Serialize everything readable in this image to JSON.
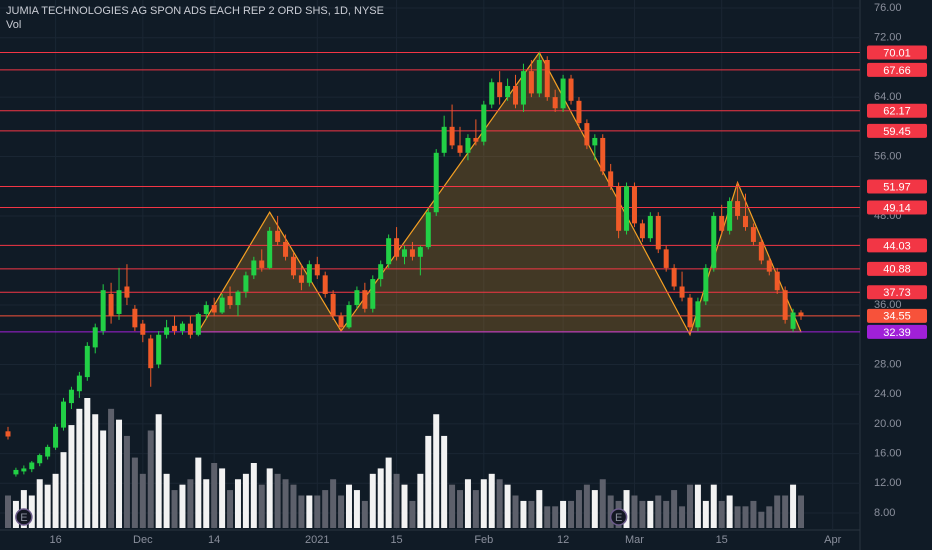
{
  "chart_data": {
    "type": "candlestick",
    "title": "JUMIA TECHNOLOGIES AG SPON ADS EACH REP 2 ORD SHS, 1D, NYSE",
    "volume_label": "Vol",
    "categories": [
      null,
      null,
      null,
      null,
      null,
      null,
      "16",
      null,
      null,
      null,
      null,
      null,
      null,
      null,
      null,
      null,
      null,
      "Dec",
      null,
      null,
      null,
      null,
      null,
      null,
      null,
      null,
      "14",
      null,
      null,
      null,
      null,
      null,
      null,
      null,
      null,
      null,
      null,
      null,
      null,
      "2021",
      null,
      null,
      null,
      null,
      null,
      null,
      null,
      null,
      null,
      "15",
      null,
      null,
      null,
      null,
      null,
      null,
      null,
      null,
      null,
      null,
      "Feb",
      null,
      null,
      null,
      null,
      null,
      null,
      null,
      null,
      null,
      "12",
      null,
      null,
      null,
      null,
      null,
      null,
      null,
      null,
      "Mar",
      null,
      null,
      null,
      null,
      null,
      null,
      null,
      null,
      null,
      null,
      "15",
      null,
      null,
      null,
      null,
      null,
      null,
      null,
      null,
      null,
      null,
      null,
      null,
      null,
      "Apr"
    ],
    "open": [
      19.0,
      13.2,
      13.6,
      13.9,
      14.7,
      15.6,
      16.8,
      19.5,
      22.8,
      24.4,
      26.3,
      30.3,
      32.5,
      37.5,
      34.8,
      38.5,
      35.5,
      33.5,
      31.5,
      28.0,
      32.0,
      33.2,
      32.5,
      33.5,
      32.0,
      34.8,
      36.0,
      35.0,
      37.2,
      36.0,
      37.8,
      40.0,
      42.0,
      41.0,
      46.0,
      44.5,
      42.5,
      40.0,
      39.0,
      41.5,
      40.0,
      37.5,
      34.5,
      33.0,
      36.0,
      38.0,
      35.5,
      39.5,
      41.5,
      45.0,
      42.5,
      43.5,
      42.5,
      43.8,
      48.5,
      56.5,
      60.0,
      57.5,
      56.5,
      58.5,
      58.0,
      63.0,
      66.0,
      64.0,
      65.5,
      63.0,
      67.5,
      64.5,
      69.0,
      64.0,
      62.5,
      66.5,
      63.5,
      60.5,
      57.5,
      58.5,
      54.0,
      52.0,
      46.0,
      52.0,
      47.0,
      45.0,
      48.0,
      43.5,
      41.0,
      38.5,
      37.0,
      33.0,
      36.5,
      41.0,
      48.0,
      46.0,
      50.0,
      48.0,
      46.5,
      44.5,
      42.0,
      40.5,
      38.0,
      32.8,
      35.0,
      null,
      null,
      null,
      null
    ],
    "high": [
      19.6,
      14.1,
      14.4,
      15.0,
      16.0,
      17.2,
      20.0,
      23.5,
      25.0,
      27.0,
      31.0,
      33.5,
      38.8,
      39.0,
      41.0,
      41.5,
      36.0,
      34.0,
      32.0,
      32.5,
      34.0,
      34.5,
      33.8,
      34.5,
      35.0,
      36.5,
      37.0,
      37.5,
      38.5,
      38.0,
      40.5,
      42.5,
      43.5,
      46.5,
      48.0,
      45.5,
      43.0,
      41.5,
      42.0,
      42.5,
      40.5,
      38.0,
      35.0,
      36.5,
      38.5,
      39.0,
      40.0,
      42.0,
      45.5,
      46.5,
      44.0,
      44.5,
      44.0,
      49.0,
      57.0,
      61.5,
      63.0,
      60.0,
      59.0,
      61.0,
      63.5,
      66.5,
      67.5,
      66.5,
      67.0,
      68.5,
      69.0,
      70.0,
      69.5,
      65.0,
      67.0,
      67.0,
      64.0,
      61.0,
      59.0,
      59.0,
      55.0,
      52.5,
      52.5,
      52.5,
      47.5,
      48.5,
      48.5,
      44.0,
      41.5,
      40.5,
      37.5,
      37.0,
      41.5,
      48.5,
      49.5,
      50.5,
      52.5,
      51.0,
      47.0,
      45.0,
      42.5,
      41.0,
      38.5,
      35.5,
      35.3,
      null,
      null,
      null,
      null
    ],
    "low": [
      17.9,
      12.9,
      13.2,
      13.5,
      14.3,
      15.2,
      16.5,
      19.1,
      22.0,
      23.5,
      25.8,
      29.5,
      32.0,
      33.5,
      34.0,
      36.0,
      32.5,
      31.0,
      25.0,
      27.5,
      31.5,
      32.0,
      32.0,
      31.5,
      31.8,
      34.0,
      34.5,
      34.8,
      35.5,
      34.5,
      37.0,
      39.5,
      40.5,
      40.8,
      44.0,
      42.0,
      39.5,
      38.0,
      38.5,
      39.5,
      37.0,
      34.0,
      32.5,
      32.8,
      35.5,
      35.0,
      35.0,
      38.5,
      41.0,
      42.0,
      41.5,
      42.0,
      40.0,
      43.5,
      48.0,
      56.0,
      57.0,
      56.0,
      55.5,
      57.5,
      57.5,
      62.5,
      63.0,
      63.5,
      62.5,
      62.0,
      64.0,
      64.0,
      63.5,
      62.0,
      62.0,
      63.0,
      60.0,
      57.0,
      55.5,
      53.5,
      51.5,
      45.0,
      45.5,
      46.5,
      44.5,
      44.5,
      43.0,
      40.5,
      38.0,
      36.5,
      32.0,
      32.5,
      36.0,
      40.5,
      45.5,
      45.5,
      47.5,
      46.0,
      44.0,
      41.5,
      40.0,
      37.5,
      33.5,
      32.4,
      34.0,
      null,
      null,
      null,
      null
    ],
    "close": [
      18.3,
      13.8,
      14.0,
      14.8,
      15.8,
      16.9,
      19.6,
      23.0,
      24.6,
      26.5,
      30.5,
      33.0,
      38.0,
      34.5,
      38.0,
      37.0,
      33.0,
      32.0,
      27.5,
      32.0,
      33.0,
      32.5,
      33.5,
      32.0,
      34.8,
      36.0,
      35.0,
      37.0,
      36.0,
      37.8,
      40.0,
      42.0,
      41.0,
      46.0,
      44.5,
      42.5,
      40.0,
      39.0,
      41.5,
      40.0,
      37.5,
      34.5,
      33.0,
      36.0,
      38.0,
      35.5,
      39.5,
      41.5,
      45.0,
      42.5,
      43.5,
      42.5,
      43.8,
      48.5,
      56.5,
      60.0,
      57.5,
      56.5,
      58.5,
      58.0,
      63.0,
      66.0,
      64.0,
      65.5,
      63.0,
      67.5,
      64.5,
      69.0,
      64.0,
      62.5,
      66.5,
      63.5,
      60.5,
      57.5,
      58.5,
      54.0,
      52.0,
      46.0,
      52.0,
      47.0,
      45.0,
      48.0,
      43.5,
      41.0,
      38.5,
      37.0,
      33.0,
      36.5,
      41.0,
      48.0,
      46.0,
      50.0,
      48.0,
      46.5,
      44.5,
      42.0,
      40.5,
      38.0,
      34.0,
      35.0,
      34.55,
      null,
      null,
      null,
      null
    ],
    "volume": [
      6,
      5,
      7,
      6,
      9,
      8,
      10,
      14,
      19,
      22,
      24,
      21,
      18,
      22,
      20,
      17,
      13,
      10,
      18,
      21,
      10,
      7,
      8,
      9,
      13,
      9,
      12,
      11,
      7,
      9,
      10,
      12,
      8,
      11,
      10,
      9,
      8,
      6,
      6,
      6,
      7,
      9,
      6,
      8,
      7,
      5,
      10,
      11,
      13,
      10,
      8,
      5,
      10,
      17,
      21,
      17,
      8,
      7,
      9,
      7,
      9,
      10,
      9,
      8,
      6,
      5,
      5,
      7,
      4,
      4,
      5,
      5,
      7,
      8,
      7,
      9,
      6,
      5,
      7,
      6,
      5,
      5,
      6,
      5,
      7,
      4,
      8,
      8,
      5,
      8,
      5,
      6,
      4,
      4,
      5,
      3,
      4,
      6,
      6,
      8,
      6,
      null,
      null,
      null,
      null
    ],
    "up_color": "#22d046",
    "down_color": "#f05a28",
    "volume_up_color": "#f2f2f2",
    "volume_down_color": "#5d606b",
    "ylim": [
      8,
      76
    ],
    "yticks": [
      {
        "value": 8,
        "label": "8.00"
      },
      {
        "value": 12,
        "label": "12.00"
      },
      {
        "value": 16,
        "label": "16.00"
      },
      {
        "value": 20,
        "label": "20.00"
      },
      {
        "value": 24,
        "label": "24.00"
      },
      {
        "value": 28,
        "label": "28.00"
      },
      {
        "value": 36,
        "label": "36.00"
      },
      {
        "value": 48,
        "label": "48.00"
      },
      {
        "value": 56,
        "label": "56.00"
      },
      {
        "value": 64,
        "label": "64.00"
      },
      {
        "value": 72,
        "label": "72.00"
      },
      {
        "value": 76,
        "label": "76.00"
      }
    ],
    "grid": true,
    "levels": [
      {
        "value": 70.01,
        "color": "#f23645"
      },
      {
        "value": 67.66,
        "color": "#f23645"
      },
      {
        "value": 62.17,
        "color": "#f23645"
      },
      {
        "value": 59.45,
        "color": "#f23645"
      },
      {
        "value": 51.97,
        "color": "#f23645"
      },
      {
        "value": 49.14,
        "color": "#f23645"
      },
      {
        "value": 44.03,
        "color": "#f23645"
      },
      {
        "value": 40.88,
        "color": "#f23645"
      },
      {
        "value": 37.73,
        "color": "#f23645"
      },
      {
        "value": 34.55,
        "color": "#f7523a"
      },
      {
        "value": 32.39,
        "color": "#a020d8"
      }
    ],
    "pattern": {
      "color": "#f5a023",
      "points": [
        [
          24,
          32.39
        ],
        [
          33,
          48.5
        ],
        [
          42,
          32.5
        ],
        [
          67,
          70.0
        ],
        [
          86,
          32.0
        ],
        [
          92,
          52.5
        ],
        [
          100,
          32.39
        ]
      ]
    },
    "events": [
      {
        "label": "E",
        "index": 2
      },
      {
        "label": "E",
        "index": 77
      }
    ]
  }
}
